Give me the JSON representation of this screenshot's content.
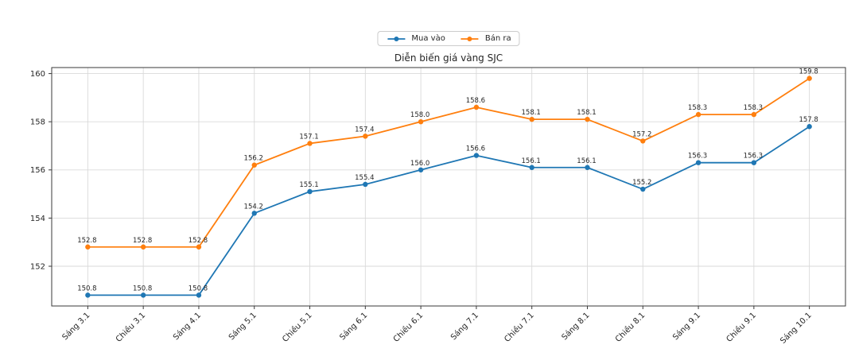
{
  "chart_data": {
    "type": "line",
    "title": "Diễn biến giá vàng SJC",
    "xlabel": "",
    "ylabel": "",
    "categories": [
      "Sáng 3.1",
      "Chiều 3.1",
      "Sáng 4.1",
      "Sáng 5.1",
      "Chiều 5.1",
      "Sáng 6.1",
      "Chiều 6.1",
      "Sáng 7.1",
      "Chiều 7.1",
      "Sáng 8.1",
      "Chiều 8.1",
      "Sáng 9.1",
      "Chiều 9.1",
      "Sáng 10.1"
    ],
    "series": [
      {
        "name": "Mua vào",
        "color": "#1f77b4",
        "marker": "circle",
        "values": [
          150.8,
          150.8,
          150.8,
          154.2,
          155.1,
          155.4,
          156.0,
          156.6,
          156.1,
          156.1,
          155.2,
          156.3,
          156.3,
          157.8
        ]
      },
      {
        "name": "Bán ra",
        "color": "#ff7f0e",
        "marker": "circle",
        "values": [
          152.8,
          152.8,
          152.8,
          156.2,
          157.1,
          157.4,
          158.0,
          158.6,
          158.1,
          158.1,
          157.2,
          158.3,
          158.3,
          159.8
        ]
      }
    ],
    "yticks": [
      152,
      154,
      156,
      158,
      160
    ],
    "ylim": [
      150.35,
      160.25
    ],
    "grid": true,
    "grid_color": "#d9d9d9",
    "spine_color": "#3a3a3a",
    "tick_label_color": "#262626",
    "data_label_color": "#262626",
    "legend_position": "top-center",
    "x_tick_rotation": 45
  }
}
